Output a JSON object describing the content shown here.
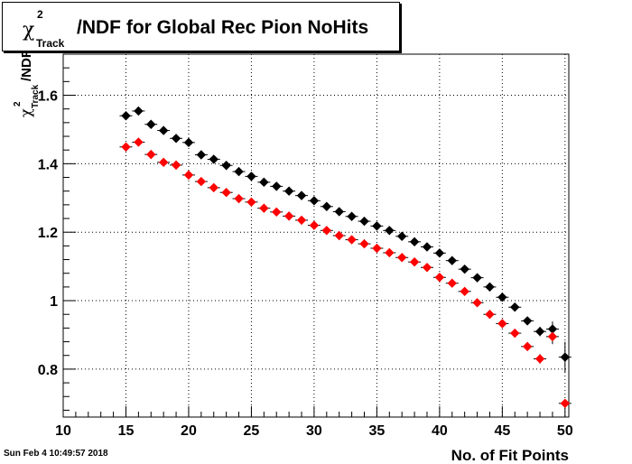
{
  "title": {
    "symbol": "χ",
    "superscript": "2",
    "subscript": "Track",
    "text": "/NDF for Global Rec Pion NoHits"
  },
  "timestamp": "Sun Feb  4 10:49:57 2018",
  "chart_data": {
    "type": "scatter",
    "title": "χ²_Track/NDF for Global Rec Pion NoHits",
    "xlabel": "No. of Fit Points",
    "ylabel": "χ²_Track/NDF",
    "xlim": [
      10,
      50.3
    ],
    "ylim": [
      0.66,
      1.72
    ],
    "x_ticks": [
      "10",
      "15",
      "20",
      "25",
      "30",
      "35",
      "40",
      "45",
      "50"
    ],
    "y_ticks": [
      "0.8",
      "1",
      "1.2",
      "1.4",
      "1.6"
    ],
    "grid": true,
    "series": [
      {
        "color": "#000000",
        "points": [
          {
            "x": 15,
            "y": 1.54,
            "err": 0.01
          },
          {
            "x": 16,
            "y": 1.554,
            "err": 0.01
          },
          {
            "x": 17,
            "y": 1.515,
            "err": 0.008
          },
          {
            "x": 18,
            "y": 1.497,
            "err": 0.008
          },
          {
            "x": 19,
            "y": 1.474,
            "err": 0.007
          },
          {
            "x": 20,
            "y": 1.462,
            "err": 0.007
          },
          {
            "x": 21,
            "y": 1.426,
            "err": 0.006
          },
          {
            "x": 22,
            "y": 1.413,
            "err": 0.006
          },
          {
            "x": 23,
            "y": 1.395,
            "err": 0.005
          },
          {
            "x": 24,
            "y": 1.377,
            "err": 0.005
          },
          {
            "x": 25,
            "y": 1.363,
            "err": 0.005
          },
          {
            "x": 26,
            "y": 1.346,
            "err": 0.005
          },
          {
            "x": 27,
            "y": 1.334,
            "err": 0.005
          },
          {
            "x": 28,
            "y": 1.32,
            "err": 0.005
          },
          {
            "x": 29,
            "y": 1.307,
            "err": 0.005
          },
          {
            "x": 30,
            "y": 1.292,
            "err": 0.005
          },
          {
            "x": 31,
            "y": 1.275,
            "err": 0.005
          },
          {
            "x": 32,
            "y": 1.26,
            "err": 0.005
          },
          {
            "x": 33,
            "y": 1.246,
            "err": 0.005
          },
          {
            "x": 34,
            "y": 1.232,
            "err": 0.005
          },
          {
            "x": 35,
            "y": 1.218,
            "err": 0.005
          },
          {
            "x": 36,
            "y": 1.205,
            "err": 0.005
          },
          {
            "x": 37,
            "y": 1.188,
            "err": 0.005
          },
          {
            "x": 38,
            "y": 1.172,
            "err": 0.005
          },
          {
            "x": 39,
            "y": 1.157,
            "err": 0.005
          },
          {
            "x": 40,
            "y": 1.139,
            "err": 0.005
          },
          {
            "x": 41,
            "y": 1.117,
            "err": 0.005
          },
          {
            "x": 42,
            "y": 1.092,
            "err": 0.006
          },
          {
            "x": 43,
            "y": 1.067,
            "err": 0.006
          },
          {
            "x": 44,
            "y": 1.04,
            "err": 0.007
          },
          {
            "x": 45,
            "y": 1.01,
            "err": 0.008
          },
          {
            "x": 46,
            "y": 0.981,
            "err": 0.009
          },
          {
            "x": 47,
            "y": 0.941,
            "err": 0.011
          },
          {
            "x": 48,
            "y": 0.91,
            "err": 0.014
          },
          {
            "x": 49,
            "y": 0.917,
            "err": 0.022
          },
          {
            "x": 50,
            "y": 0.835,
            "err": 0.045
          }
        ]
      },
      {
        "color": "#ff0000",
        "points": [
          {
            "x": 15,
            "y": 1.449,
            "err": 0.01
          },
          {
            "x": 16,
            "y": 1.463,
            "err": 0.01
          },
          {
            "x": 17,
            "y": 1.427,
            "err": 0.008
          },
          {
            "x": 18,
            "y": 1.404,
            "err": 0.008
          },
          {
            "x": 19,
            "y": 1.396,
            "err": 0.007
          },
          {
            "x": 20,
            "y": 1.367,
            "err": 0.007
          },
          {
            "x": 21,
            "y": 1.348,
            "err": 0.006
          },
          {
            "x": 22,
            "y": 1.33,
            "err": 0.006
          },
          {
            "x": 23,
            "y": 1.316,
            "err": 0.005
          },
          {
            "x": 24,
            "y": 1.298,
            "err": 0.005
          },
          {
            "x": 25,
            "y": 1.288,
            "err": 0.005
          },
          {
            "x": 26,
            "y": 1.27,
            "err": 0.005
          },
          {
            "x": 27,
            "y": 1.259,
            "err": 0.005
          },
          {
            "x": 28,
            "y": 1.247,
            "err": 0.005
          },
          {
            "x": 29,
            "y": 1.235,
            "err": 0.005
          },
          {
            "x": 30,
            "y": 1.22,
            "err": 0.005
          },
          {
            "x": 31,
            "y": 1.205,
            "err": 0.005
          },
          {
            "x": 32,
            "y": 1.19,
            "err": 0.005
          },
          {
            "x": 33,
            "y": 1.178,
            "err": 0.005
          },
          {
            "x": 34,
            "y": 1.166,
            "err": 0.005
          },
          {
            "x": 35,
            "y": 1.153,
            "err": 0.005
          },
          {
            "x": 36,
            "y": 1.14,
            "err": 0.005
          },
          {
            "x": 37,
            "y": 1.126,
            "err": 0.005
          },
          {
            "x": 38,
            "y": 1.113,
            "err": 0.005
          },
          {
            "x": 39,
            "y": 1.097,
            "err": 0.005
          },
          {
            "x": 40,
            "y": 1.068,
            "err": 0.005
          },
          {
            "x": 41,
            "y": 1.051,
            "err": 0.005
          },
          {
            "x": 42,
            "y": 1.027,
            "err": 0.006
          },
          {
            "x": 43,
            "y": 0.994,
            "err": 0.006
          },
          {
            "x": 44,
            "y": 0.96,
            "err": 0.007
          },
          {
            "x": 45,
            "y": 0.933,
            "err": 0.008
          },
          {
            "x": 46,
            "y": 0.905,
            "err": 0.009
          },
          {
            "x": 47,
            "y": 0.866,
            "err": 0.011
          },
          {
            "x": 48,
            "y": 0.83,
            "err": 0.014
          },
          {
            "x": 49,
            "y": 0.895,
            "err": 0.022
          },
          {
            "x": 50,
            "y": 0.7,
            "err": 0.006
          }
        ]
      }
    ]
  }
}
